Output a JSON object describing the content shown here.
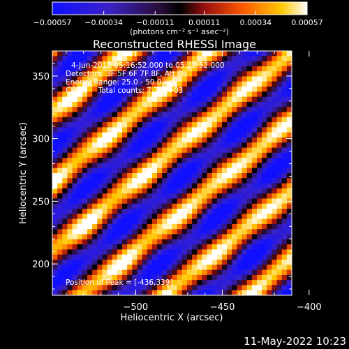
{
  "chart_data": {
    "type": "heatmap",
    "title": "Reconstructed RHESSI Image",
    "xlabel": "Heliocentric X (arcsec)",
    "ylabel": "Heliocentric Y (arcsec)",
    "xlim": [
      -548,
      -410
    ],
    "ylim": [
      175,
      370
    ],
    "x_ticks": [
      -500,
      -450,
      -400
    ],
    "y_ticks": [
      200,
      250,
      300,
      350
    ],
    "colorbar": {
      "ticks": [
        "-0.00057",
        "-0.00034",
        "-0.00011",
        "0.00011",
        "0.00034",
        "0.00057"
      ],
      "range": [
        -0.00057,
        0.00057
      ],
      "label": "(photons cm⁻² s⁻¹ asec⁻²)"
    },
    "annotations": [
      "4-Jun-2012 05:16:52.000 to 05:22:52.000",
      "Detectors: 3F 5F 6F 7F 8F, Att 0",
      "Energy Range: 25.0 - 50.0 keV",
      "Clean     Total counts: 7.76E+03"
    ],
    "peak_label": "Position of Peak = [-436,339]",
    "peak": [
      -436,
      339
    ],
    "pattern": {
      "ridge_direction": "diagonal, rising to the right",
      "stripe_spacing_arcsec": 55,
      "stripe_slope": 1.15
    }
  },
  "footer_timestamp": "11-May-2022 10:23"
}
